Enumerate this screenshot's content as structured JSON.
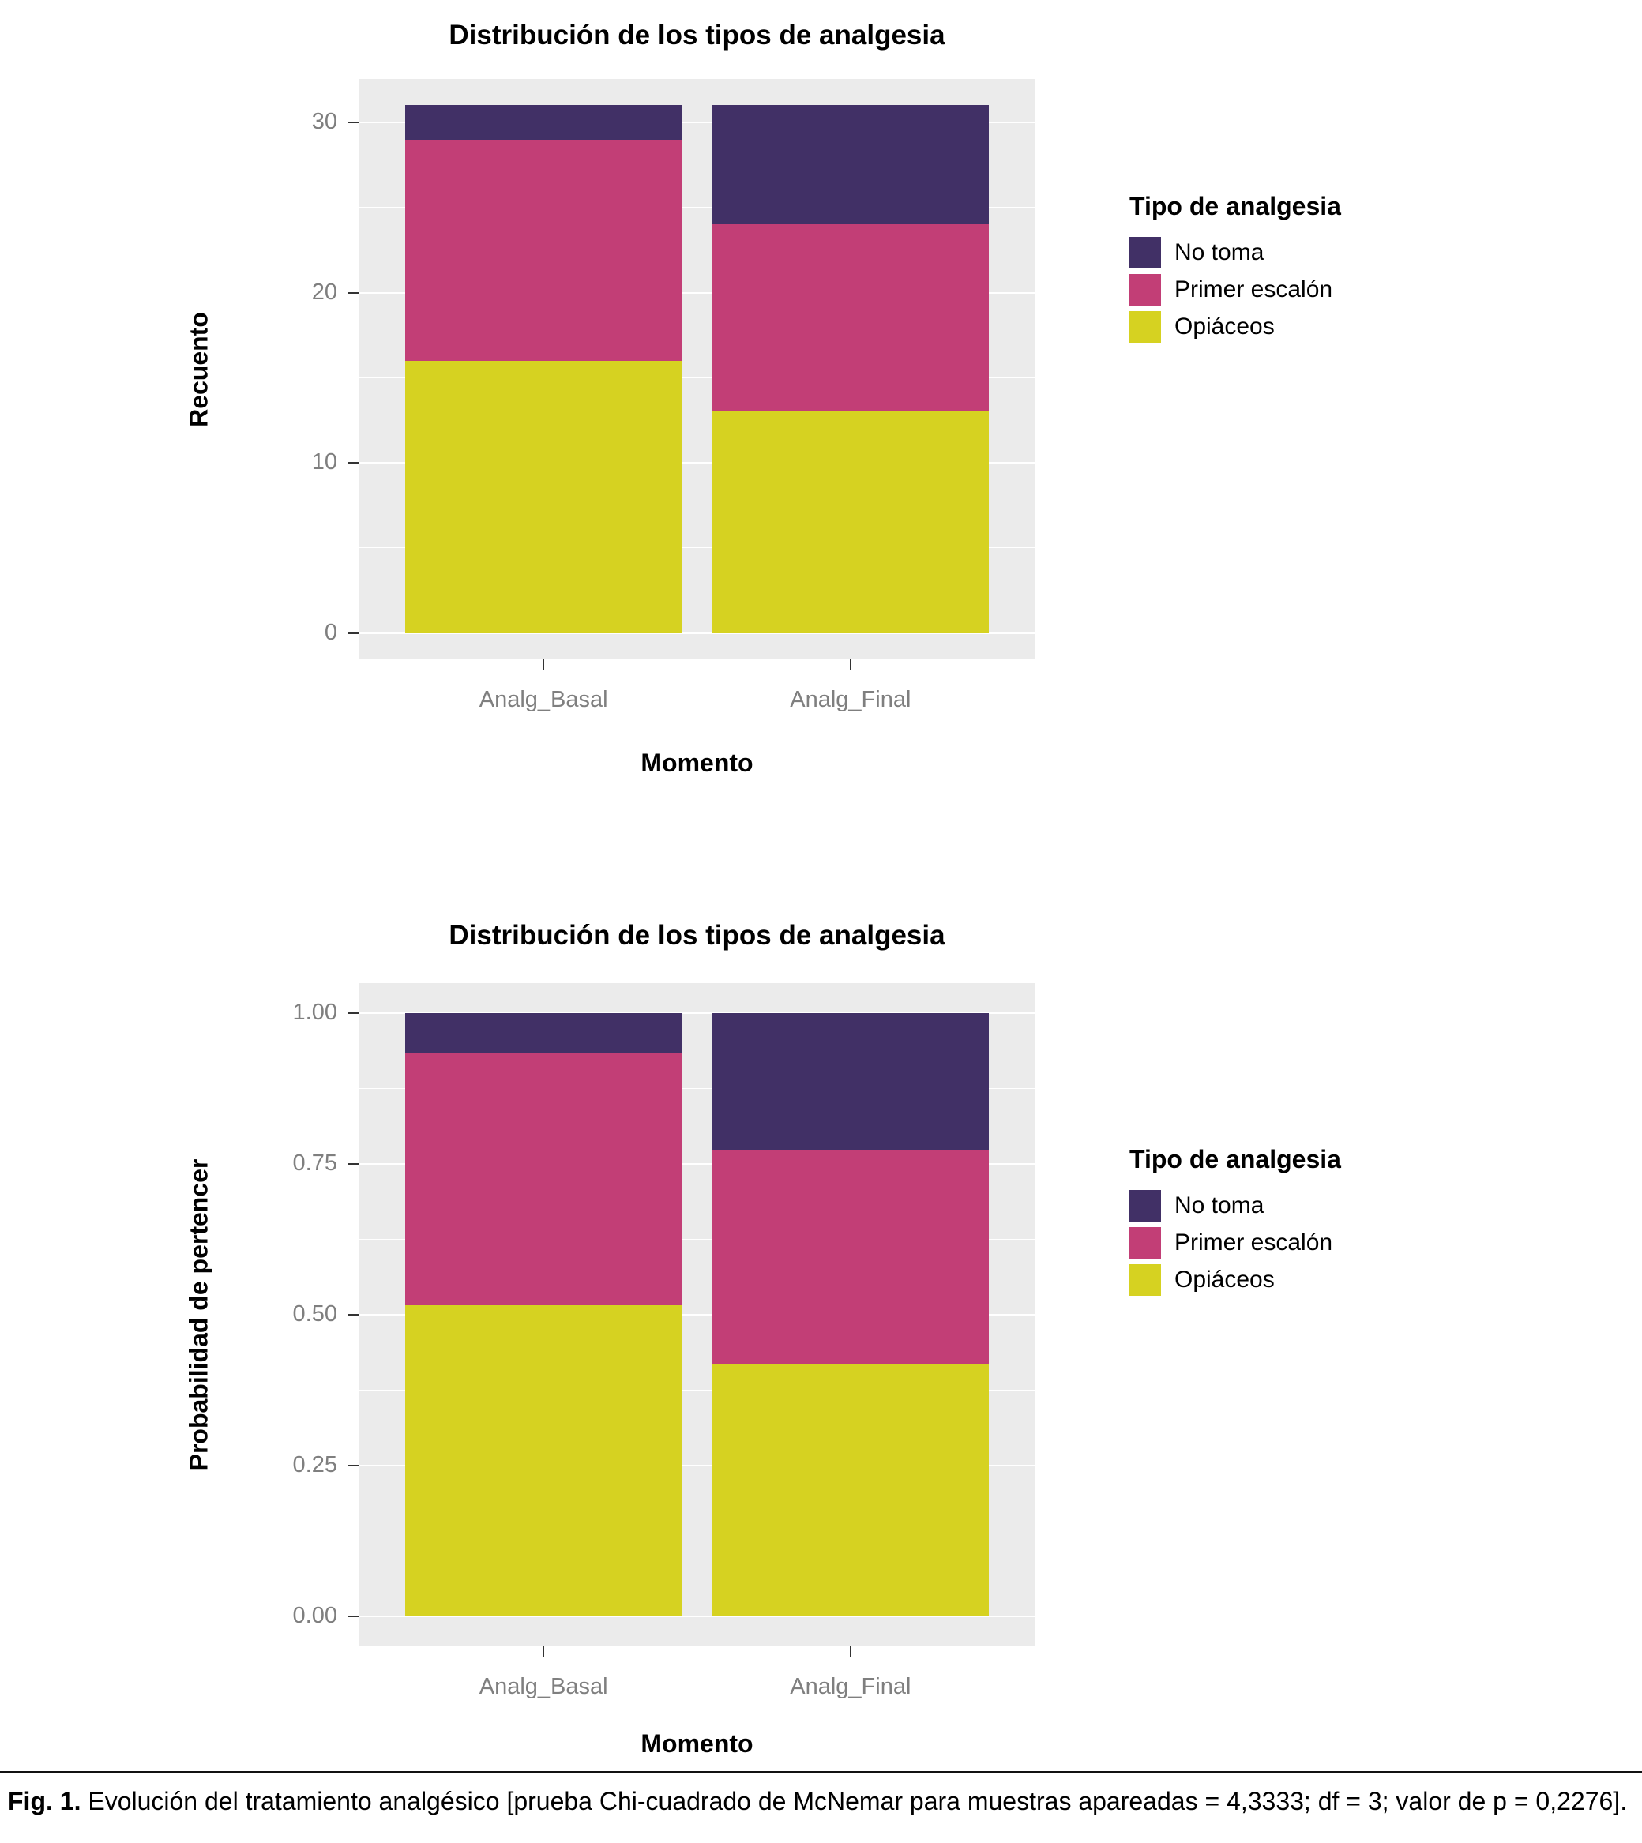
{
  "caption": {
    "label": "Fig. 1.",
    "text": "Evolución del tratamiento analgésico [prueba Chi-cuadrado de McNemar para muestras apareadas = 4,3333; df = 3; valor de p = 0,2276]."
  },
  "colors": {
    "no_toma": "#413066",
    "primer_escalon": "#C23E76",
    "opiaceos": "#D6D221",
    "panel_bg": "#EBEBEB",
    "grid": "#FFFFFF",
    "tick_text": "#7F7F7F"
  },
  "legend": {
    "title": "Tipo de analgesia",
    "items": [
      {
        "label": "No toma",
        "color_key": "no_toma"
      },
      {
        "label": "Primer escalón",
        "color_key": "primer_escalon"
      },
      {
        "label": "Opiáceos",
        "color_key": "opiaceos"
      }
    ]
  },
  "chart_data": [
    {
      "type": "bar",
      "stacked": true,
      "title": "Distribución de los tipos de analgesia",
      "xlabel": "Momento",
      "ylabel": "Recuento",
      "categories": [
        "Analg_Basal",
        "Analg_Final"
      ],
      "series": [
        {
          "name": "Opiáceos",
          "color_key": "opiaceos",
          "values": [
            16,
            13
          ]
        },
        {
          "name": "Primer escalón",
          "color_key": "primer_escalon",
          "values": [
            13,
            11
          ]
        },
        {
          "name": "No toma",
          "color_key": "no_toma",
          "values": [
            2,
            7
          ]
        }
      ],
      "yticks": [
        0,
        10,
        20,
        30
      ],
      "ytick_labels": [
        "0",
        "10",
        "20",
        "30"
      ],
      "ylim": [
        0,
        31
      ],
      "grid": true,
      "legend_position": "right"
    },
    {
      "type": "bar",
      "stacked": true,
      "title": "Distribución de los tipos de analgesia",
      "xlabel": "Momento",
      "ylabel": "Probabilidad de pertencer",
      "categories": [
        "Analg_Basal",
        "Analg_Final"
      ],
      "series": [
        {
          "name": "Opiáceos",
          "color_key": "opiaceos",
          "values": [
            0.516,
            0.419
          ]
        },
        {
          "name": "Primer escalón",
          "color_key": "primer_escalon",
          "values": [
            0.419,
            0.355
          ]
        },
        {
          "name": "No toma",
          "color_key": "no_toma",
          "values": [
            0.065,
            0.226
          ]
        }
      ],
      "yticks": [
        0,
        0.25,
        0.5,
        0.75,
        1
      ],
      "ytick_labels": [
        "0.00",
        "0.25",
        "0.50",
        "0.75",
        "1.00"
      ],
      "ylim": [
        0,
        1
      ],
      "grid": true,
      "legend_position": "right"
    }
  ]
}
